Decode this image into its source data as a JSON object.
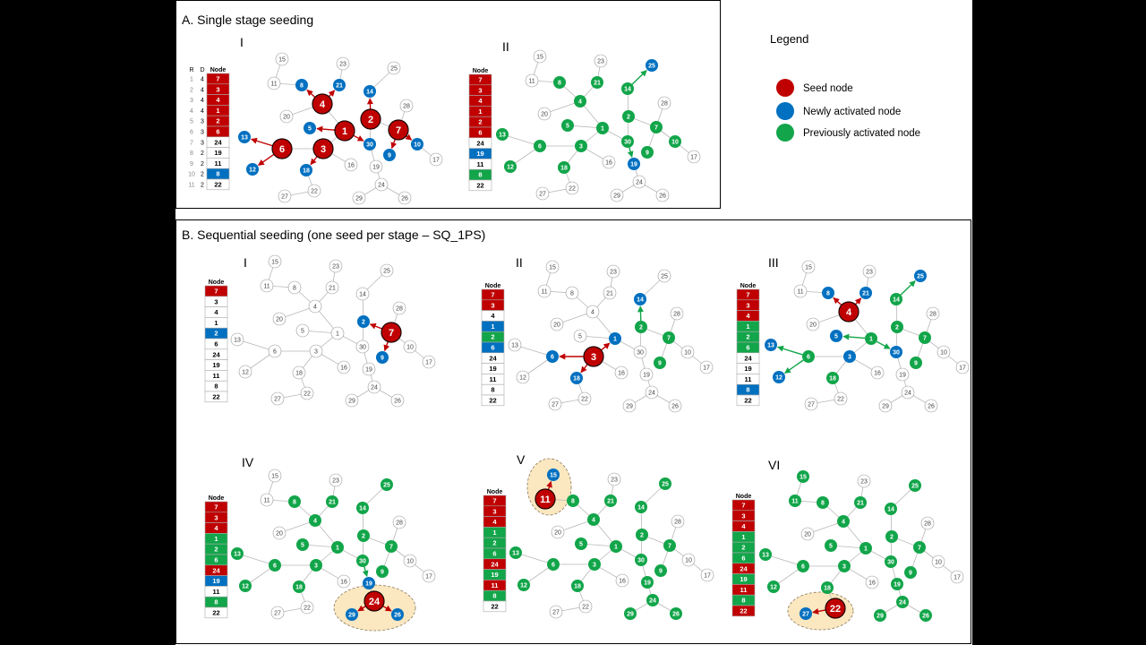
{
  "colors": {
    "seed": "#c00000",
    "new": "#0070c0",
    "prev": "#12a54a",
    "inactive": "#ffffff",
    "edge": "#b8b8b8",
    "highlight": "#fbe7c0"
  },
  "section_a": {
    "title": "A. Single stage seeding"
  },
  "section_b": {
    "title": "B. Sequential seeding (one seed per stage – SQ_1PS)"
  },
  "legend": {
    "title": "Legend",
    "items": [
      {
        "label": "Seed node",
        "state": "seed"
      },
      {
        "label": "Newly activated node",
        "state": "new"
      },
      {
        "label": "Previously activated node",
        "state": "prev"
      }
    ]
  },
  "graph": {
    "nodes": [
      1,
      2,
      3,
      4,
      5,
      6,
      7,
      8,
      9,
      10,
      11,
      12,
      13,
      14,
      15,
      16,
      17,
      18,
      19,
      20,
      21,
      22,
      23,
      24,
      25,
      26,
      27,
      28,
      29,
      30
    ],
    "edges": [
      [
        15,
        11
      ],
      [
        11,
        8
      ],
      [
        8,
        4
      ],
      [
        4,
        21
      ],
      [
        21,
        23
      ],
      [
        4,
        20
      ],
      [
        4,
        1
      ],
      [
        1,
        5
      ],
      [
        1,
        3
      ],
      [
        1,
        30
      ],
      [
        3,
        6
      ],
      [
        6,
        13
      ],
      [
        6,
        12
      ],
      [
        3,
        18
      ],
      [
        18,
        22
      ],
      [
        22,
        27
      ],
      [
        3,
        16
      ],
      [
        30,
        2
      ],
      [
        2,
        14
      ],
      [
        14,
        25
      ],
      [
        2,
        7
      ],
      [
        7,
        28
      ],
      [
        7,
        9
      ],
      [
        7,
        10
      ],
      [
        10,
        17
      ],
      [
        30,
        19
      ],
      [
        19,
        24
      ],
      [
        24,
        29
      ],
      [
        24,
        26
      ]
    ]
  },
  "panels": [
    {
      "section": "A",
      "label": "I",
      "table": {
        "headers": [
          "R",
          "D",
          "Node"
        ],
        "rows": [
          {
            "r": "1",
            "d": "4",
            "node": "7",
            "state": "seed"
          },
          {
            "r": "2",
            "d": "4",
            "node": "3",
            "state": "seed"
          },
          {
            "r": "3",
            "d": "4",
            "node": "4",
            "state": "seed"
          },
          {
            "r": "4",
            "d": "4",
            "node": "1",
            "state": "seed"
          },
          {
            "r": "5",
            "d": "3",
            "node": "2",
            "state": "seed"
          },
          {
            "r": "6",
            "d": "3",
            "node": "6",
            "state": "seed"
          },
          {
            "r": "7",
            "d": "3",
            "node": "24",
            "state": "none"
          },
          {
            "r": "8",
            "d": "2",
            "node": "19",
            "state": "none"
          },
          {
            "r": "9",
            "d": "2",
            "node": "11",
            "state": "none"
          },
          {
            "r": "10",
            "d": "2",
            "node": "8",
            "state": "new"
          },
          {
            "r": "11",
            "d": "2",
            "node": "22",
            "state": "none"
          }
        ]
      },
      "seed": [
        7,
        3,
        4,
        1,
        2,
        6
      ],
      "new": [
        8,
        21,
        14,
        5,
        30,
        13,
        12,
        18,
        9,
        10
      ],
      "prev": [],
      "arrows": [
        [
          4,
          8,
          "seed"
        ],
        [
          4,
          21,
          "seed"
        ],
        [
          1,
          5,
          "seed"
        ],
        [
          1,
          30,
          "seed"
        ],
        [
          2,
          14,
          "seed"
        ],
        [
          7,
          9,
          "seed"
        ],
        [
          7,
          10,
          "seed"
        ],
        [
          6,
          13,
          "seed"
        ],
        [
          6,
          12,
          "seed"
        ],
        [
          3,
          18,
          "seed"
        ]
      ],
      "highlight": []
    },
    {
      "section": "A",
      "label": "II",
      "table": {
        "headers": [
          "Node"
        ],
        "rows": [
          {
            "node": "7",
            "state": "seed"
          },
          {
            "node": "3",
            "state": "seed"
          },
          {
            "node": "4",
            "state": "seed"
          },
          {
            "node": "1",
            "state": "seed"
          },
          {
            "node": "2",
            "state": "seed"
          },
          {
            "node": "6",
            "state": "seed"
          },
          {
            "node": "24",
            "state": "none"
          },
          {
            "node": "19",
            "state": "new"
          },
          {
            "node": "11",
            "state": "none"
          },
          {
            "node": "8",
            "state": "prev"
          },
          {
            "node": "22",
            "state": "none"
          }
        ]
      },
      "seed": [],
      "new": [
        25,
        19
      ],
      "prev": [
        8,
        21,
        14,
        4,
        5,
        1,
        2,
        7,
        10,
        9,
        30,
        3,
        6,
        13,
        12,
        18
      ],
      "arrows": [
        [
          14,
          25,
          "prev"
        ],
        [
          30,
          19,
          "prev"
        ]
      ],
      "highlight": []
    },
    {
      "section": "B",
      "label": "I",
      "table": {
        "headers": [
          "Node"
        ],
        "rows": [
          {
            "node": "7",
            "state": "seed"
          },
          {
            "node": "3",
            "state": "none"
          },
          {
            "node": "4",
            "state": "none"
          },
          {
            "node": "1",
            "state": "none"
          },
          {
            "node": "2",
            "state": "new"
          },
          {
            "node": "6",
            "state": "none"
          },
          {
            "node": "24",
            "state": "none"
          },
          {
            "node": "19",
            "state": "none"
          },
          {
            "node": "11",
            "state": "none"
          },
          {
            "node": "8",
            "state": "none"
          },
          {
            "node": "22",
            "state": "none"
          }
        ]
      },
      "seed": [
        7
      ],
      "new": [
        2,
        9
      ],
      "prev": [],
      "arrows": [
        [
          7,
          2,
          "seed"
        ],
        [
          7,
          9,
          "seed"
        ]
      ],
      "highlight": []
    },
    {
      "section": "B",
      "label": "II",
      "table": {
        "headers": [
          "Node"
        ],
        "rows": [
          {
            "node": "7",
            "state": "seed"
          },
          {
            "node": "3",
            "state": "seed"
          },
          {
            "node": "4",
            "state": "none"
          },
          {
            "node": "1",
            "state": "new"
          },
          {
            "node": "2",
            "state": "prev"
          },
          {
            "node": "6",
            "state": "new"
          },
          {
            "node": "24",
            "state": "none"
          },
          {
            "node": "19",
            "state": "none"
          },
          {
            "node": "11",
            "state": "none"
          },
          {
            "node": "8",
            "state": "none"
          },
          {
            "node": "22",
            "state": "none"
          }
        ]
      },
      "seed": [
        3
      ],
      "new": [
        1,
        6,
        18,
        14
      ],
      "prev": [
        2,
        7,
        9
      ],
      "arrows": [
        [
          3,
          1,
          "seed"
        ],
        [
          3,
          6,
          "seed"
        ],
        [
          3,
          18,
          "seed"
        ],
        [
          2,
          14,
          "prev"
        ]
      ],
      "highlight": []
    },
    {
      "section": "B",
      "label": "III",
      "table": {
        "headers": [
          "Node"
        ],
        "rows": [
          {
            "node": "7",
            "state": "seed"
          },
          {
            "node": "3",
            "state": "seed"
          },
          {
            "node": "4",
            "state": "seed"
          },
          {
            "node": "1",
            "state": "prev"
          },
          {
            "node": "2",
            "state": "prev"
          },
          {
            "node": "6",
            "state": "prev"
          },
          {
            "node": "24",
            "state": "none"
          },
          {
            "node": "19",
            "state": "none"
          },
          {
            "node": "11",
            "state": "none"
          },
          {
            "node": "8",
            "state": "new"
          },
          {
            "node": "22",
            "state": "none"
          }
        ]
      },
      "seed": [
        4
      ],
      "new": [
        8,
        21,
        5,
        30,
        13,
        12,
        3,
        25
      ],
      "prev": [
        14,
        2,
        7,
        9,
        1,
        6,
        18
      ],
      "arrows": [
        [
          4,
          8,
          "seed"
        ],
        [
          4,
          21,
          "seed"
        ],
        [
          1,
          5,
          "prev"
        ],
        [
          1,
          30,
          "prev"
        ],
        [
          6,
          13,
          "prev"
        ],
        [
          6,
          12,
          "prev"
        ],
        [
          14,
          25,
          "prev"
        ]
      ],
      "highlight": []
    },
    {
      "section": "B",
      "label": "IV",
      "table": {
        "headers": [
          "Node"
        ],
        "rows": [
          {
            "node": "7",
            "state": "seed"
          },
          {
            "node": "3",
            "state": "seed"
          },
          {
            "node": "4",
            "state": "seed"
          },
          {
            "node": "1",
            "state": "prev"
          },
          {
            "node": "2",
            "state": "prev"
          },
          {
            "node": "6",
            "state": "prev"
          },
          {
            "node": "24",
            "state": "seed"
          },
          {
            "node": "19",
            "state": "new"
          },
          {
            "node": "11",
            "state": "none"
          },
          {
            "node": "8",
            "state": "prev"
          },
          {
            "node": "22",
            "state": "none"
          }
        ]
      },
      "seed": [
        24
      ],
      "new": [
        19,
        29,
        26
      ],
      "prev": [
        8,
        21,
        25,
        14,
        4,
        2,
        7,
        5,
        1,
        30,
        9,
        13,
        6,
        3,
        12,
        18
      ],
      "arrows": [
        [
          30,
          19,
          "prev"
        ],
        [
          24,
          29,
          "seed"
        ],
        [
          24,
          26,
          "seed"
        ]
      ],
      "highlight": [
        24,
        29,
        26
      ]
    },
    {
      "section": "B",
      "label": "V",
      "table": {
        "headers": [
          "Node"
        ],
        "rows": [
          {
            "node": "7",
            "state": "seed"
          },
          {
            "node": "3",
            "state": "seed"
          },
          {
            "node": "4",
            "state": "seed"
          },
          {
            "node": "1",
            "state": "prev"
          },
          {
            "node": "2",
            "state": "prev"
          },
          {
            "node": "6",
            "state": "prev"
          },
          {
            "node": "24",
            "state": "seed"
          },
          {
            "node": "19",
            "state": "prev"
          },
          {
            "node": "11",
            "state": "seed"
          },
          {
            "node": "8",
            "state": "prev"
          },
          {
            "node": "22",
            "state": "none"
          }
        ]
      },
      "seed": [
        11
      ],
      "new": [
        15
      ],
      "prev": [
        8,
        21,
        25,
        14,
        4,
        2,
        7,
        5,
        1,
        30,
        9,
        13,
        6,
        3,
        12,
        18,
        19,
        24,
        29,
        26
      ],
      "arrows": [
        [
          11,
          15,
          "seed"
        ]
      ],
      "highlight": [
        11,
        15
      ]
    },
    {
      "section": "B",
      "label": "VI",
      "table": {
        "headers": [
          "Node"
        ],
        "rows": [
          {
            "node": "7",
            "state": "seed"
          },
          {
            "node": "3",
            "state": "seed"
          },
          {
            "node": "4",
            "state": "seed"
          },
          {
            "node": "1",
            "state": "prev"
          },
          {
            "node": "2",
            "state": "prev"
          },
          {
            "node": "6",
            "state": "prev"
          },
          {
            "node": "24",
            "state": "seed"
          },
          {
            "node": "19",
            "state": "prev"
          },
          {
            "node": "11",
            "state": "seed"
          },
          {
            "node": "8",
            "state": "prev"
          },
          {
            "node": "22",
            "state": "seed"
          }
        ]
      },
      "seed": [
        22
      ],
      "new": [
        27
      ],
      "prev": [
        15,
        11,
        8,
        21,
        25,
        14,
        4,
        2,
        7,
        5,
        1,
        30,
        9,
        13,
        6,
        3,
        12,
        18,
        19,
        24,
        29,
        26
      ],
      "arrows": [
        [
          22,
          27,
          "seed"
        ]
      ],
      "highlight": [
        22,
        27
      ]
    }
  ]
}
